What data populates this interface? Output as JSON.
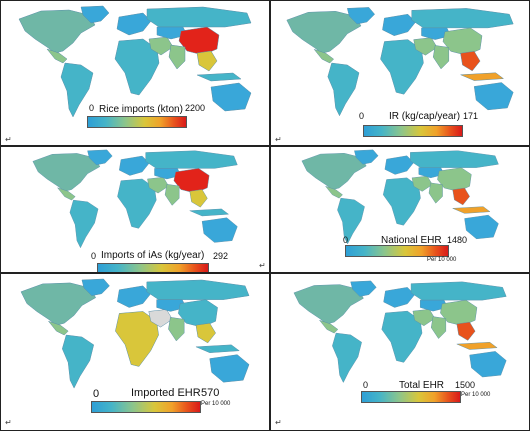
{
  "panels": [
    {
      "title": "Rice imports (kton)",
      "min": "0",
      "max": "2200",
      "unit": "",
      "hot": "china"
    },
    {
      "title": "IR (kg/cap/year)",
      "min": "0",
      "max": "171",
      "unit": "",
      "hot": "seasia"
    },
    {
      "title": "Imports of iAs (kg/year)",
      "min": "0",
      "max": "292",
      "unit": "",
      "hot": "china"
    },
    {
      "title": "National EHR",
      "min": "0",
      "max": "1480",
      "unit": "Per 10 000",
      "hot": "seasia"
    },
    {
      "title": "Imported EHR",
      "min": "0",
      "max": "570",
      "unit": "Per 10 000",
      "hot": "africa"
    },
    {
      "title": "Total EHR",
      "min": "0",
      "max": "1500",
      "unit": "Per 10 000",
      "hot": "seasia"
    }
  ],
  "paragraph_mark": "↵",
  "colors": {
    "ocean": "#ffffff",
    "land": "#39a7d9",
    "low": "#2e9fd6",
    "mid": "#d9c63a",
    "high": "#d91a1a",
    "nodata": "#d9d9d9"
  }
}
